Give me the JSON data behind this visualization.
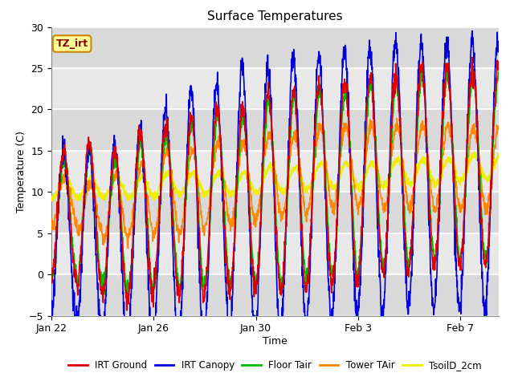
{
  "title": "Surface Temperatures",
  "xlabel": "Time",
  "ylabel": "Temperature (C)",
  "ylim": [
    -5,
    30
  ],
  "xlim_days": [
    0,
    17.5
  ],
  "xtick_labels": [
    "Jan 22",
    "Jan 26",
    "Jan 30",
    "Feb 3",
    "Feb 7"
  ],
  "xtick_positions": [
    0,
    4,
    8,
    12,
    16
  ],
  "ytick_positions": [
    -5,
    0,
    5,
    10,
    15,
    20,
    25,
    30
  ],
  "series_colors": {
    "IRT Ground": "#dd0000",
    "IRT Canopy": "#0000dd",
    "Floor Tair": "#00bb00",
    "Tower TAir": "#ff8800",
    "TsoilD_2cm": "#eeee00"
  },
  "legend_entries": [
    "IRT Ground",
    "IRT Canopy",
    "Floor Tair",
    "Tower TAir",
    "TsoilD_2cm"
  ],
  "annotation_text": "TZ_irt",
  "annotation_bg": "#ffff99",
  "annotation_border": "#cc8800",
  "annotation_text_color": "#880000",
  "bg_color": "#e8e8e8",
  "shaded_band_color": "#d0d0d0",
  "figsize": [
    6.4,
    4.8
  ],
  "dpi": 100
}
